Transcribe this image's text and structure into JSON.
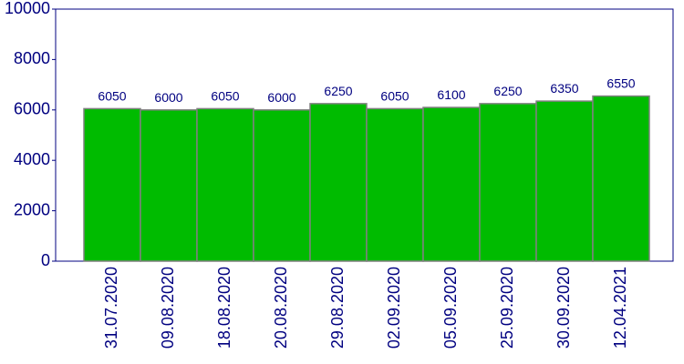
{
  "chart_data": {
    "type": "bar",
    "categories": [
      "31.07.2020",
      "09.08.2020",
      "18.08.2020",
      "20.08.2020",
      "29.08.2020",
      "02.09.2020",
      "05.09.2020",
      "25.09.2020",
      "30.09.2020",
      "12.04.2021"
    ],
    "values": [
      6050,
      6000,
      6050,
      6000,
      6250,
      6050,
      6100,
      6250,
      6350,
      6550
    ],
    "color": "#00bb00",
    "ylim": [
      0,
      10000
    ],
    "yticks": [
      0,
      2000,
      4000,
      6000,
      8000,
      10000
    ],
    "grid": false
  }
}
